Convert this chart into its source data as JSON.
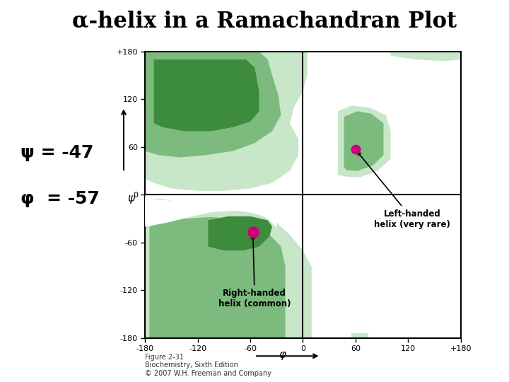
{
  "title": "α-helix in a Ramachandran Plot",
  "title_fontsize": 22,
  "background_color": "#ffffff",
  "plot_bg_color": "#ffffff",
  "psi_label": "ψ = -47",
  "phi_label": "φ  = -57",
  "label_fontsize": 18,
  "xlabel": "φ",
  "ylabel": "ψ",
  "xlim": [
    -180,
    180
  ],
  "ylim": [
    -180,
    180
  ],
  "xticks": [
    -180,
    -120,
    -60,
    0,
    60,
    120,
    180
  ],
  "yticks": [
    -180,
    -120,
    -60,
    0,
    60,
    120,
    180
  ],
  "xtick_labels": [
    "-180",
    "-120",
    "-60",
    "0",
    "60",
    "120",
    "+180"
  ],
  "ytick_labels": [
    "-180",
    "-120",
    "-60",
    "0",
    "60",
    "120",
    "+180"
  ],
  "outer_region_color": "#c8e6c8",
  "inner_region_color": "#7dba7d",
  "core_region_color": "#3d8b3d",
  "dot_color": "#cc007a",
  "rh_helix_phi": -57,
  "rh_helix_psi": -47,
  "lh_helix_phi": 60,
  "lh_helix_psi": 57,
  "figure_caption": "Figure 2-31\nBiochemistry, Sixth Edition\n© 2007 W.H. Freeman and Company",
  "caption_fontsize": 7
}
